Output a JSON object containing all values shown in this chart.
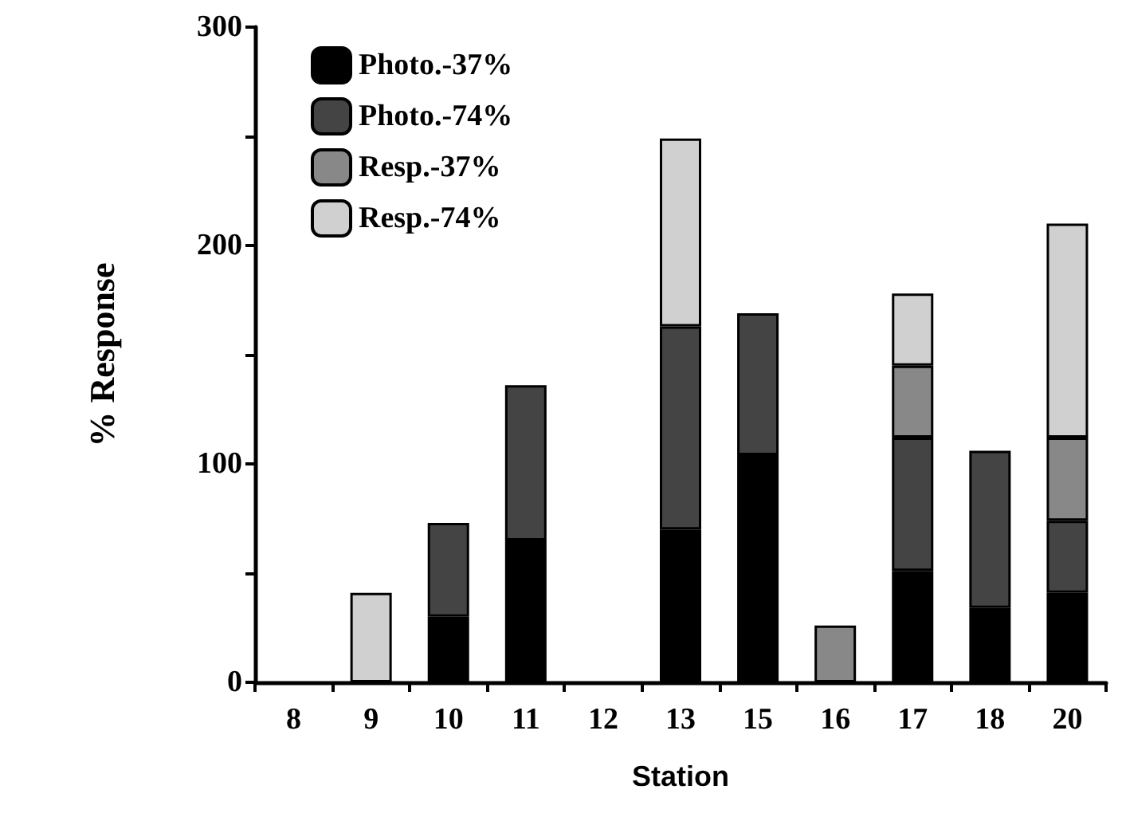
{
  "chart_data": {
    "type": "bar",
    "stacked": true,
    "xlabel": "Station",
    "ylabel": "% Response",
    "categories": [
      "8",
      "9",
      "10",
      "11",
      "12",
      "13",
      "15",
      "16",
      "17",
      "18",
      "20"
    ],
    "series": [
      {
        "name": "Photo.-37%",
        "color": "#000000",
        "values": [
          null,
          null,
          30,
          65,
          null,
          70,
          104,
          null,
          51,
          34,
          41
        ]
      },
      {
        "name": "Photo.-74%",
        "color": "#444444",
        "values": [
          null,
          null,
          43,
          71,
          null,
          93,
          65,
          null,
          61,
          72,
          33
        ]
      },
      {
        "name": "Resp.-37%",
        "color": "#888888",
        "values": [
          null,
          null,
          null,
          null,
          null,
          null,
          null,
          26,
          33,
          null,
          38
        ]
      },
      {
        "name": "Resp.-74%",
        "color": "#d0d0d0",
        "values": [
          null,
          41,
          null,
          null,
          null,
          86,
          null,
          null,
          33,
          null,
          98
        ]
      }
    ],
    "ylim": [
      0,
      300
    ],
    "yticks": [
      0,
      {
        "value": 50,
        "label": null
      },
      100,
      {
        "value": 150,
        "label": null
      },
      200,
      {
        "value": 250,
        "label": null
      },
      300
    ],
    "grid": false,
    "legend": "top left"
  }
}
